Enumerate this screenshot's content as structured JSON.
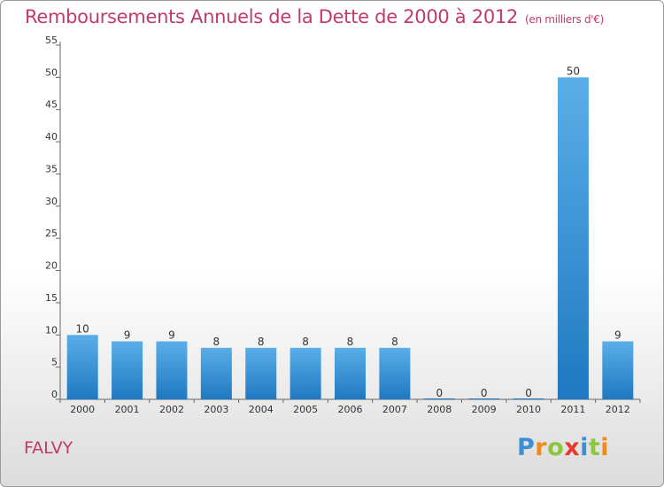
{
  "title": "Remboursements Annuels de la Dette de 2000 à 2012",
  "unit_label": "(en milliers d'€)",
  "commune": "FALVY",
  "logo": {
    "text": "Proxiti",
    "letters": [
      {
        "ch": "P",
        "color": "#3a8fd6"
      },
      {
        "ch": "r",
        "color": "#f08a1c"
      },
      {
        "ch": "o",
        "color": "#8cc63f"
      },
      {
        "ch": "x",
        "color": "#e63a2e"
      },
      {
        "ch": "i",
        "color": "#3a8fd6"
      },
      {
        "ch": "t",
        "color": "#8cc63f"
      },
      {
        "ch": "i",
        "color": "#f08a1c"
      }
    ]
  },
  "colors": {
    "title": "#c23a6a",
    "bar_top": "#5aaee8",
    "bar_bottom": "#1f78c0",
    "axis": "#333333"
  },
  "chart_data": {
    "type": "bar",
    "categories": [
      "2000",
      "2001",
      "2002",
      "2003",
      "2004",
      "2005",
      "2006",
      "2007",
      "2008",
      "2009",
      "2010",
      "2011",
      "2012"
    ],
    "values": [
      10,
      9,
      9,
      8,
      8,
      8,
      8,
      8,
      0,
      0,
      0,
      50,
      9
    ],
    "ylim": [
      0,
      55
    ],
    "yticks": [
      0,
      5,
      10,
      15,
      20,
      25,
      30,
      35,
      40,
      45,
      50,
      55
    ],
    "xlabel": "",
    "ylabel": "",
    "grid": false,
    "legend": "none"
  }
}
